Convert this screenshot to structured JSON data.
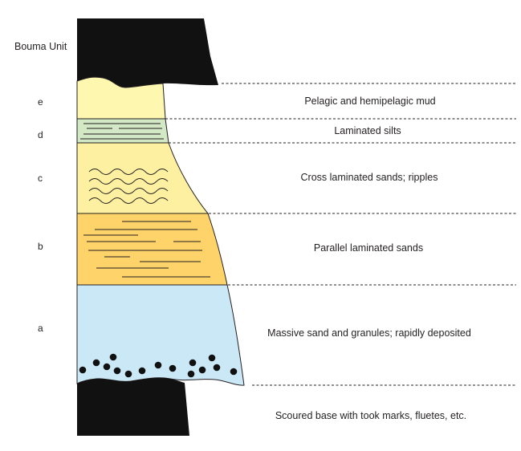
{
  "heading": "Bouma Unit",
  "units": [
    {
      "letter": "e",
      "description": "Pelagic and hemipelagic mud",
      "fill": "#fdf7b0"
    },
    {
      "letter": "d",
      "description": "Laminated silts",
      "fill": "#d3e8c4"
    },
    {
      "letter": "c",
      "description": "Cross laminated sands; ripples",
      "fill": "#fdf0a0"
    },
    {
      "letter": "b",
      "description": "Parallel laminated sands",
      "fill": "#fdd36a"
    },
    {
      "letter": "a",
      "description": "Massive sand and granules; rapidly deposited",
      "fill": "#cbe8f7"
    }
  ],
  "base_description": "Scoured base with took marks, fluetes, etc.",
  "colors": {
    "mud": "#111111",
    "outline": "#231f20",
    "guide": "#231f20",
    "granule": "#111111"
  }
}
